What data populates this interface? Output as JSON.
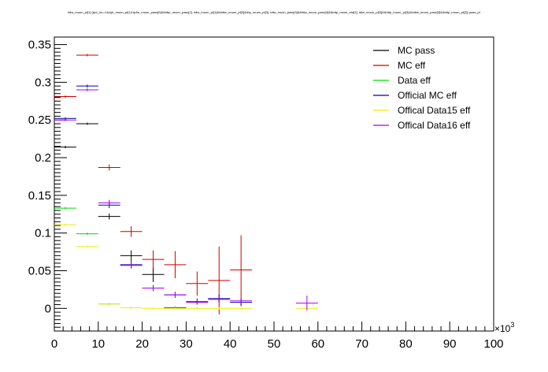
{
  "chart_data": {
    "type": "scatter",
    "title": "tdiw_muon_pt[1] (tpd_id==1&&pt_muon_pt[1]+tp&e_muon_pass[0]&&tdtp_muon_pass[2], tdiw_muon_pt[1]&&tdiw_muon_pt[3]&&tp_muon_pt[3], tdiw_muon_pass[3]&&tdtp_muon_pass[3]&&tdtp_muon_eta[3], tdiw_muon_pt[3]&&tdtp_muon_pt[3]&&tdiw_muon_pass[3]&&tdtp_muon_pt[3]) pass_pt",
    "xlabel": "",
    "ylabel": "",
    "x_exponent_label": "×10",
    "x_exponent_power": "3",
    "xlim": [
      0,
      100
    ],
    "ylim": [
      -0.03,
      0.36
    ],
    "xticks": [
      "0",
      "10",
      "20",
      "30",
      "40",
      "50",
      "60",
      "70",
      "80",
      "90",
      "100"
    ],
    "yticks": [
      "0",
      "0.05",
      "0.1",
      "0.15",
      "0.2",
      "0.25",
      "0.3",
      "0.35"
    ],
    "legend_position": "top-right",
    "series": [
      {
        "name": "MC pass",
        "color": "#000000",
        "points": [
          [
            2.5,
            0.214,
            0.001
          ],
          [
            7.5,
            0.245,
            0.001
          ],
          [
            12.5,
            0.122,
            0.004
          ],
          [
            17.5,
            0.07,
            0.007
          ],
          [
            22.5,
            0.045,
            0.01
          ],
          [
            27.5,
            0.001,
            0.0
          ]
        ]
      },
      {
        "name": "MC eff",
        "color": "#cc0000",
        "points": [
          [
            2.5,
            0.281,
            0.001
          ],
          [
            7.5,
            0.336,
            0.001
          ],
          [
            12.5,
            0.187,
            0.004
          ],
          [
            17.5,
            0.102,
            0.007
          ],
          [
            22.5,
            0.065,
            0.012
          ],
          [
            27.5,
            0.058,
            0.018
          ],
          [
            32.5,
            0.033,
            0.016
          ],
          [
            37.5,
            0.037,
            0.045
          ],
          [
            42.5,
            0.051,
            0.046
          ]
        ]
      },
      {
        "name": "Data eff",
        "color": "#00dd00",
        "points": [
          [
            2.5,
            0.133,
            0.0005
          ],
          [
            7.5,
            0.099,
            0.0005
          ],
          [
            12.5,
            0.006,
            0.0005
          ],
          [
            27.5,
            0.0005,
            0.0
          ]
        ]
      },
      {
        "name": "Official MC eff",
        "color": "#0000aa",
        "points": [
          [
            2.5,
            0.252,
            0.001
          ],
          [
            7.5,
            0.295,
            0.002
          ],
          [
            12.5,
            0.137,
            0.004
          ],
          [
            17.5,
            0.058,
            0.005
          ],
          [
            22.5,
            0.027,
            0.004
          ],
          [
            27.5,
            0.018,
            0.004
          ],
          [
            32.5,
            0.009,
            0.004
          ],
          [
            37.5,
            0.013,
            0.005
          ],
          [
            42.5,
            0.008,
            0.005
          ]
        ]
      },
      {
        "name": "Offical Data15 eff",
        "color": "#eeee00",
        "points": [
          [
            2.5,
            0.111,
            0.0005
          ],
          [
            7.5,
            0.082,
            0.0005
          ],
          [
            12.5,
            0.006,
            0.0005
          ],
          [
            17.5,
            0.001,
            0.0
          ],
          [
            22.5,
            0.0,
            0.0
          ],
          [
            27.5,
            0.0,
            0.0
          ],
          [
            32.5,
            0.0,
            0.0
          ],
          [
            37.5,
            0.0,
            0.0
          ],
          [
            42.5,
            0.0,
            0.0
          ],
          [
            57.5,
            0.0,
            0.0
          ]
        ]
      },
      {
        "name": "Offical Data16 eff",
        "color": "#aa00ee",
        "points": [
          [
            2.5,
            0.25,
            0.001
          ],
          [
            7.5,
            0.29,
            0.002
          ],
          [
            12.5,
            0.14,
            0.004
          ],
          [
            17.5,
            0.057,
            0.004
          ],
          [
            22.5,
            0.027,
            0.003
          ],
          [
            27.5,
            0.018,
            0.004
          ],
          [
            32.5,
            0.008,
            0.003
          ],
          [
            37.5,
            0.012,
            0.004
          ],
          [
            42.5,
            0.01,
            0.004
          ],
          [
            57.5,
            0.007,
            0.01
          ]
        ]
      }
    ]
  }
}
